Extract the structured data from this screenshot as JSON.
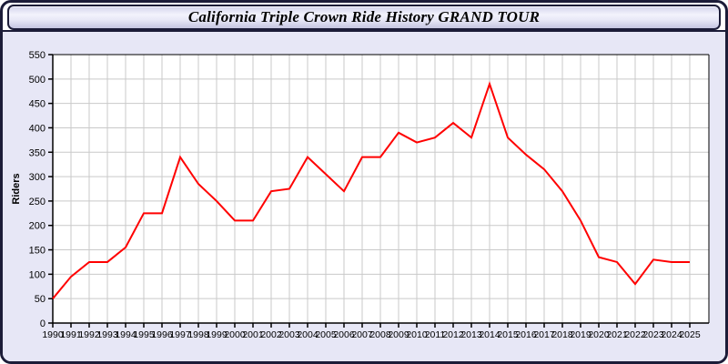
{
  "header": {
    "title": "California Triple Crown Ride History GRAND TOUR"
  },
  "colors": {
    "line": "#ff0000",
    "plot_background": "#ffffff",
    "page_background": "#e7e7f6",
    "gridline": "#c9c9c9",
    "axis": "#000000",
    "frame_border": "#1c1c38",
    "header_gradient_top": "#d4d4ec",
    "header_gradient_bottom": "#c5c5e1"
  },
  "chart_data": {
    "type": "line",
    "title": "California Triple Crown Ride History GRAND TOUR",
    "xlabel": "",
    "ylabel": "Riders",
    "ylim": [
      0,
      550
    ],
    "ytick_step": 50,
    "yticks": [
      0,
      50,
      100,
      150,
      200,
      250,
      300,
      350,
      400,
      450,
      500,
      550
    ],
    "grid": true,
    "legend_position": "none",
    "x": [
      1990,
      1991,
      1992,
      1993,
      1994,
      1995,
      1996,
      1997,
      1998,
      1999,
      2000,
      2001,
      2002,
      2003,
      2004,
      2005,
      2006,
      2007,
      2008,
      2009,
      2010,
      2011,
      2012,
      2013,
      2014,
      2015,
      2016,
      2017,
      2018,
      2019,
      2020,
      2021,
      2022,
      2023,
      2024,
      2025
    ],
    "series": [
      {
        "name": "Riders",
        "color": "#ff0000",
        "values": [
          50,
          95,
          125,
          125,
          155,
          225,
          225,
          340,
          285,
          250,
          210,
          210,
          270,
          275,
          340,
          305,
          270,
          340,
          340,
          390,
          370,
          380,
          410,
          380,
          490,
          380,
          345,
          315,
          270,
          210,
          135,
          125,
          80,
          130,
          125,
          125
        ]
      }
    ]
  }
}
